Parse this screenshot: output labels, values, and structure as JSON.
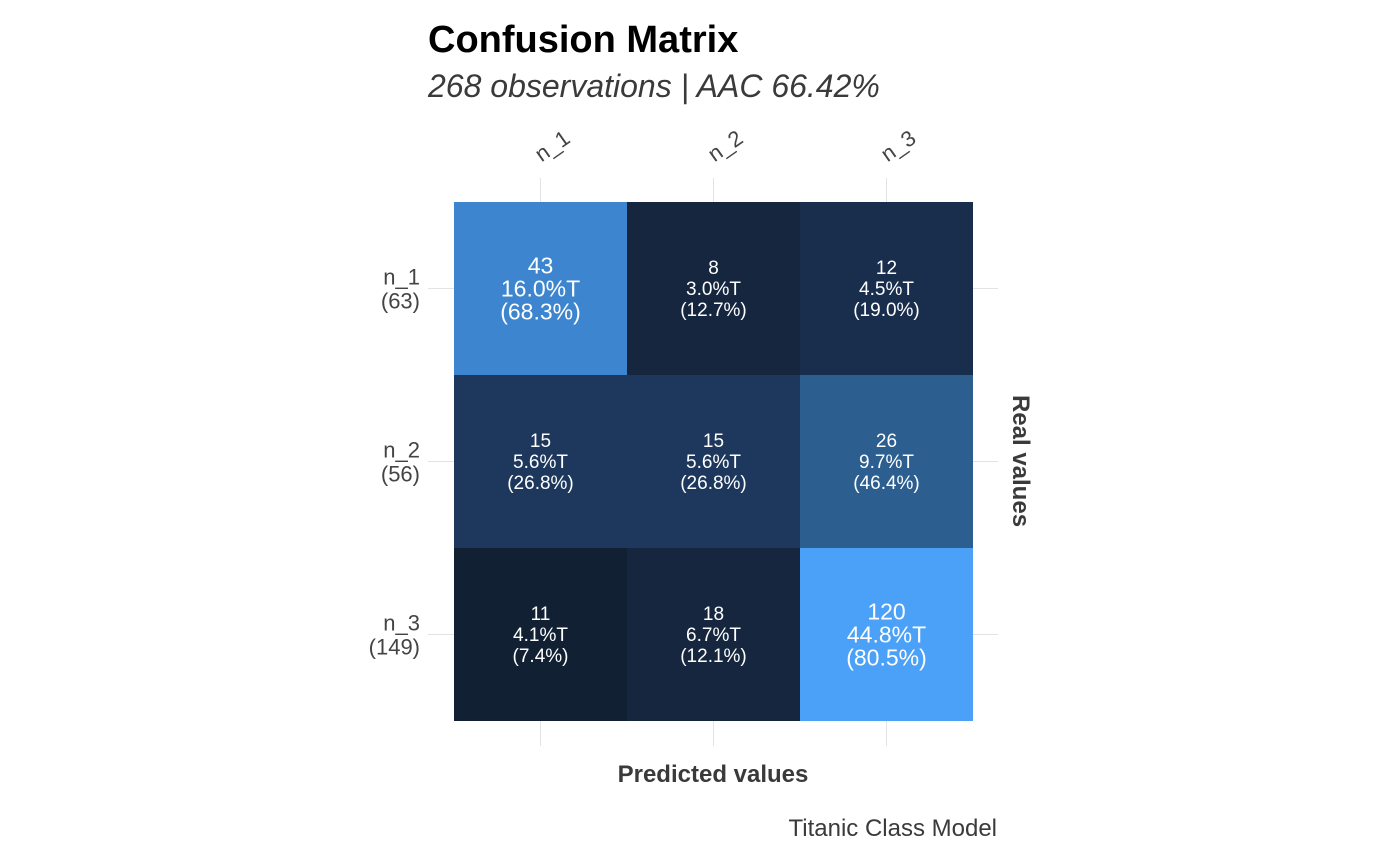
{
  "chart_data": {
    "type": "heatmap",
    "title": "Confusion Matrix",
    "subtitle": "268 observations | AAC 66.42%",
    "xlabel": "Predicted values",
    "ylabel": "Real values",
    "caption": "Titanic Class Model",
    "x_categories": [
      "n_1",
      "n_2",
      "n_3"
    ],
    "y_categories": [
      {
        "label": "n_1",
        "total": "(63)"
      },
      {
        "label": "n_2",
        "total": "(56)"
      },
      {
        "label": "n_3",
        "total": "(149)"
      }
    ],
    "cells": [
      [
        {
          "count": "43",
          "pct_total": "16.0%T",
          "pct_row": "(68.3%)",
          "value": 68.3,
          "color": "#3D85CE"
        },
        {
          "count": "8",
          "pct_total": "3.0%T",
          "pct_row": "(12.7%)",
          "value": 12.7,
          "color": "#15263E"
        },
        {
          "count": "12",
          "pct_total": "4.5%T",
          "pct_row": "(19.0%)",
          "value": 19.0,
          "color": "#192E4D"
        }
      ],
      [
        {
          "count": "15",
          "pct_total": "5.6%T",
          "pct_row": "(26.8%)",
          "value": 26.8,
          "color": "#1D385C"
        },
        {
          "count": "15",
          "pct_total": "5.6%T",
          "pct_row": "(26.8%)",
          "value": 26.8,
          "color": "#1D385C"
        },
        {
          "count": "26",
          "pct_total": "9.7%T",
          "pct_row": "(46.4%)",
          "value": 46.4,
          "color": "#2C5E8F"
        }
      ],
      [
        {
          "count": "11",
          "pct_total": "4.1%T",
          "pct_row": "(7.4%)",
          "value": 7.4,
          "color": "#112033"
        },
        {
          "count": "18",
          "pct_total": "6.7%T",
          "pct_row": "(12.1%)",
          "value": 12.1,
          "color": "#15263E"
        },
        {
          "count": "120",
          "pct_total": "44.8%T",
          "pct_row": "(80.5%)",
          "value": 80.5,
          "color": "#4AA1F7"
        }
      ]
    ],
    "grid": true,
    "color_scale": {
      "low": "#112033",
      "high": "#4AA1F7"
    }
  }
}
